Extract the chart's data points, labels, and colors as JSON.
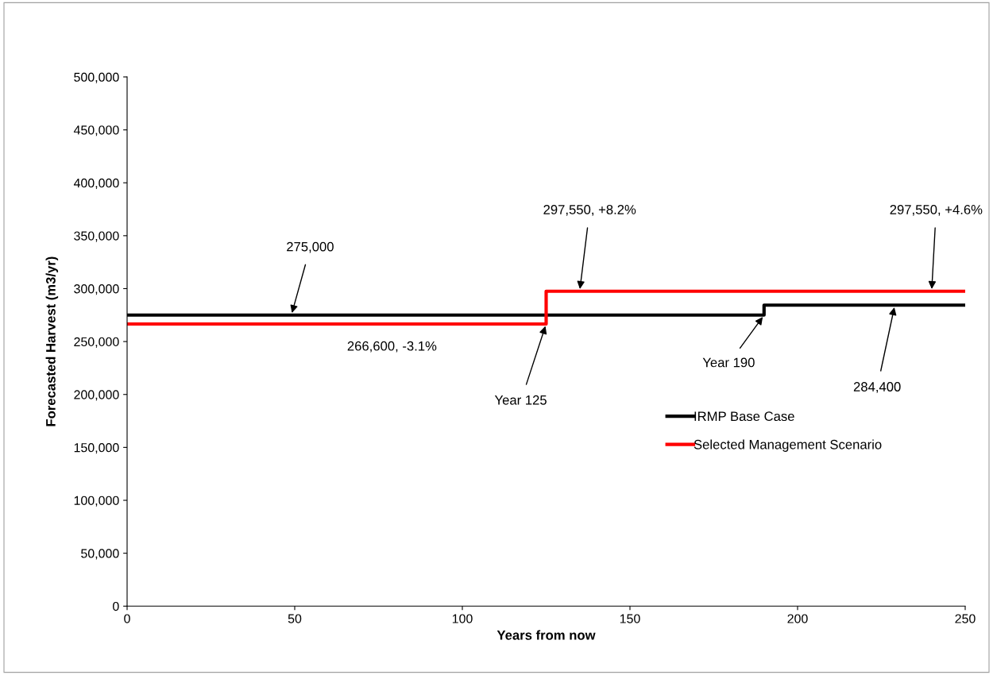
{
  "chart_data": {
    "type": "step",
    "xlabel": "Years from now",
    "ylabel": "Forecasted Harvest (m3/yr)",
    "xlim": [
      0,
      250
    ],
    "xticks": [
      0,
      50,
      100,
      150,
      200,
      250
    ],
    "ylim": [
      0,
      500000
    ],
    "yticks": [
      {
        "value": 0,
        "label": "0"
      },
      {
        "value": 50000,
        "label": "50,000"
      },
      {
        "value": 100000,
        "label": "100,000"
      },
      {
        "value": 150000,
        "label": "150,000"
      },
      {
        "value": 200000,
        "label": "200,000"
      },
      {
        "value": 250000,
        "label": "250,000"
      },
      {
        "value": 300000,
        "label": "300,000"
      },
      {
        "value": 350000,
        "label": "350,000"
      },
      {
        "value": 400000,
        "label": "400,000"
      },
      {
        "value": 450000,
        "label": "450,000"
      },
      {
        "value": 500000,
        "label": "500,000"
      }
    ],
    "grid": false,
    "legend": "right",
    "marker": "none",
    "line_style": "solid",
    "series": [
      {
        "name": "IRMP Base Case",
        "color": "#000000",
        "x": [
          0,
          190,
          250
        ],
        "values": [
          275000,
          284400,
          284400
        ]
      },
      {
        "name": "Selected Management Scenario",
        "color": "#ff0000",
        "x": [
          0,
          125,
          250
        ],
        "values": [
          266600,
          297550,
          297550
        ]
      }
    ],
    "annotations": [
      {
        "text": "275,000",
        "x": 49,
        "y": 275000
      },
      {
        "text": "266,600, -3.1%",
        "x": 79,
        "y": 266600
      },
      {
        "text": "297,550, +8.2%",
        "x": 135,
        "y": 297550
      },
      {
        "text": "Year 125",
        "x": 125,
        "y": 266600
      },
      {
        "text": "Year 190",
        "x": 190,
        "y": 275000
      },
      {
        "text": "284,400",
        "x": 229,
        "y": 284400
      },
      {
        "text": "297,550, +4.6%",
        "x": 240,
        "y": 297550
      }
    ]
  }
}
